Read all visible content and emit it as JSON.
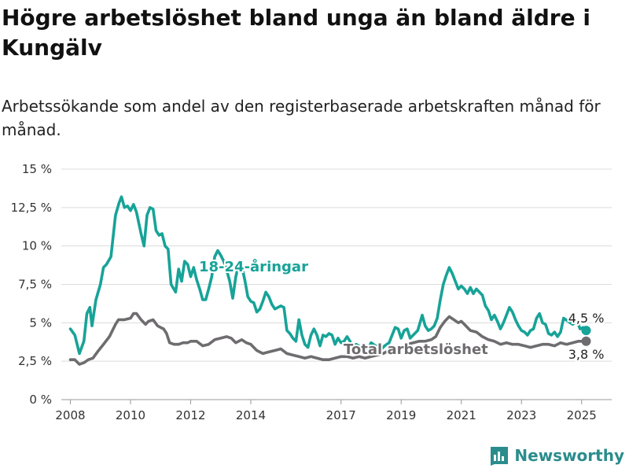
{
  "header": {
    "title": "Högre arbetslöshet bland unga än bland äldre i Kungälv",
    "subtitle": "Arbetssökande som andel av den registerbaserade arbetskraften månad för månad."
  },
  "brand": {
    "name": "Newsworthy",
    "icon": "bar-chart-icon",
    "color": "#2b8c8c"
  },
  "chart_data": {
    "type": "line",
    "title": "Högre arbetslöshet bland unga än bland äldre i Kungälv",
    "subtitle": "Arbetssökande som andel av den registerbaserade arbetskraften månad för månad.",
    "xlabel": "",
    "ylabel": "",
    "xlim": [
      2007.7,
      2026.0
    ],
    "ylim": [
      0,
      15
    ],
    "xticks": [
      2008,
      2010,
      2012,
      2014,
      2017,
      2019,
      2021,
      2023,
      2025
    ],
    "xtick_labels": [
      "2008",
      "2010",
      "2012",
      "2014",
      "2017",
      "2019",
      "2021",
      "2023",
      "2025"
    ],
    "yticks": [
      0,
      2.5,
      5,
      7.5,
      10,
      12.5,
      15
    ],
    "ytick_labels": [
      "0 %",
      "2,5 %",
      "5 %",
      "7,5 %",
      "10 %",
      "12,5 %",
      "15 %"
    ],
    "grid": "horizontal",
    "series": [
      {
        "name": "18-24-åringar",
        "color": "#17a398",
        "end_label": "4,5 %",
        "points": [
          [
            2008.0,
            4.6
          ],
          [
            2008.15,
            4.2
          ],
          [
            2008.3,
            3.0
          ],
          [
            2008.45,
            3.8
          ],
          [
            2008.55,
            5.6
          ],
          [
            2008.65,
            6.0
          ],
          [
            2008.72,
            4.8
          ],
          [
            2008.85,
            6.5
          ],
          [
            2009.0,
            7.5
          ],
          [
            2009.1,
            8.6
          ],
          [
            2009.2,
            8.8
          ],
          [
            2009.35,
            9.3
          ],
          [
            2009.5,
            12.0
          ],
          [
            2009.62,
            12.8
          ],
          [
            2009.7,
            13.2
          ],
          [
            2009.8,
            12.5
          ],
          [
            2009.9,
            12.6
          ],
          [
            2010.0,
            12.3
          ],
          [
            2010.1,
            12.7
          ],
          [
            2010.2,
            12.2
          ],
          [
            2010.35,
            10.8
          ],
          [
            2010.45,
            10.0
          ],
          [
            2010.55,
            12.0
          ],
          [
            2010.65,
            12.5
          ],
          [
            2010.75,
            12.4
          ],
          [
            2010.85,
            11.0
          ],
          [
            2010.95,
            10.7
          ],
          [
            2011.05,
            10.8
          ],
          [
            2011.15,
            10.0
          ],
          [
            2011.25,
            9.8
          ],
          [
            2011.35,
            7.5
          ],
          [
            2011.5,
            7.0
          ],
          [
            2011.6,
            8.5
          ],
          [
            2011.7,
            7.7
          ],
          [
            2011.8,
            9.0
          ],
          [
            2011.9,
            8.8
          ],
          [
            2012.0,
            8.0
          ],
          [
            2012.1,
            8.6
          ],
          [
            2012.2,
            7.8
          ],
          [
            2012.3,
            7.2
          ],
          [
            2012.4,
            6.5
          ],
          [
            2012.5,
            6.5
          ],
          [
            2012.6,
            7.2
          ],
          [
            2012.7,
            8.0
          ],
          [
            2012.8,
            9.3
          ],
          [
            2012.9,
            9.7
          ],
          [
            2013.0,
            9.4
          ],
          [
            2013.1,
            9.0
          ],
          [
            2013.2,
            8.4
          ],
          [
            2013.3,
            7.7
          ],
          [
            2013.4,
            6.6
          ],
          [
            2013.5,
            8.0
          ],
          [
            2013.6,
            8.8
          ],
          [
            2013.7,
            8.7
          ],
          [
            2013.8,
            7.8
          ],
          [
            2013.9,
            6.7
          ],
          [
            2014.0,
            6.4
          ],
          [
            2014.1,
            6.3
          ],
          [
            2014.2,
            5.7
          ],
          [
            2014.3,
            5.9
          ],
          [
            2014.4,
            6.4
          ],
          [
            2014.5,
            7.0
          ],
          [
            2014.6,
            6.7
          ],
          [
            2014.7,
            6.2
          ],
          [
            2014.8,
            5.9
          ],
          [
            2014.9,
            6.0
          ],
          [
            2015.0,
            6.1
          ],
          [
            2015.1,
            6.0
          ],
          [
            2015.2,
            4.5
          ],
          [
            2015.3,
            4.3
          ],
          [
            2015.4,
            4.0
          ],
          [
            2015.5,
            3.8
          ],
          [
            2015.6,
            5.2
          ],
          [
            2015.7,
            4.2
          ],
          [
            2015.8,
            3.6
          ],
          [
            2015.9,
            3.4
          ],
          [
            2016.0,
            4.2
          ],
          [
            2016.1,
            4.6
          ],
          [
            2016.2,
            4.2
          ],
          [
            2016.3,
            3.5
          ],
          [
            2016.4,
            4.2
          ],
          [
            2016.5,
            4.1
          ],
          [
            2016.6,
            4.3
          ],
          [
            2016.7,
            4.2
          ],
          [
            2016.8,
            3.6
          ],
          [
            2016.9,
            4.0
          ],
          [
            2017.0,
            3.7
          ],
          [
            2017.1,
            3.8
          ],
          [
            2017.2,
            4.1
          ],
          [
            2017.3,
            3.8
          ],
          [
            2017.4,
            3.2
          ],
          [
            2017.5,
            3.6
          ],
          [
            2017.6,
            3.5
          ],
          [
            2017.7,
            3.4
          ],
          [
            2017.8,
            3.4
          ],
          [
            2017.9,
            3.3
          ],
          [
            2018.0,
            3.7
          ],
          [
            2018.15,
            3.5
          ],
          [
            2018.3,
            3.2
          ],
          [
            2018.45,
            3.5
          ],
          [
            2018.6,
            3.7
          ],
          [
            2018.8,
            4.7
          ],
          [
            2018.9,
            4.6
          ],
          [
            2019.0,
            4.0
          ],
          [
            2019.1,
            4.5
          ],
          [
            2019.2,
            4.6
          ],
          [
            2019.3,
            4.0
          ],
          [
            2019.4,
            4.2
          ],
          [
            2019.55,
            4.5
          ],
          [
            2019.7,
            5.5
          ],
          [
            2019.8,
            4.8
          ],
          [
            2019.9,
            4.5
          ],
          [
            2020.0,
            4.6
          ],
          [
            2020.1,
            4.8
          ],
          [
            2020.2,
            5.3
          ],
          [
            2020.3,
            6.5
          ],
          [
            2020.4,
            7.5
          ],
          [
            2020.5,
            8.1
          ],
          [
            2020.6,
            8.6
          ],
          [
            2020.7,
            8.2
          ],
          [
            2020.8,
            7.7
          ],
          [
            2020.9,
            7.2
          ],
          [
            2021.0,
            7.4
          ],
          [
            2021.1,
            7.2
          ],
          [
            2021.2,
            6.9
          ],
          [
            2021.3,
            7.3
          ],
          [
            2021.4,
            6.9
          ],
          [
            2021.5,
            7.2
          ],
          [
            2021.6,
            7.0
          ],
          [
            2021.7,
            6.8
          ],
          [
            2021.8,
            6.1
          ],
          [
            2021.9,
            5.8
          ],
          [
            2022.0,
            5.2
          ],
          [
            2022.1,
            5.5
          ],
          [
            2022.2,
            5.1
          ],
          [
            2022.3,
            4.6
          ],
          [
            2022.4,
            5.0
          ],
          [
            2022.5,
            5.5
          ],
          [
            2022.6,
            6.0
          ],
          [
            2022.7,
            5.7
          ],
          [
            2022.8,
            5.2
          ],
          [
            2022.9,
            4.8
          ],
          [
            2023.0,
            4.5
          ],
          [
            2023.1,
            4.4
          ],
          [
            2023.2,
            4.2
          ],
          [
            2023.3,
            4.5
          ],
          [
            2023.4,
            4.6
          ],
          [
            2023.5,
            5.3
          ],
          [
            2023.6,
            5.6
          ],
          [
            2023.7,
            5.0
          ],
          [
            2023.8,
            4.9
          ],
          [
            2023.9,
            4.3
          ],
          [
            2024.0,
            4.2
          ],
          [
            2024.1,
            4.4
          ],
          [
            2024.2,
            4.1
          ],
          [
            2024.3,
            4.4
          ],
          [
            2024.4,
            5.3
          ],
          [
            2024.55,
            5.1
          ],
          [
            2024.7,
            4.9
          ],
          [
            2024.85,
            5.1
          ],
          [
            2024.95,
            4.6
          ],
          [
            2025.05,
            4.7
          ],
          [
            2025.15,
            4.5
          ]
        ]
      },
      {
        "name": "Total arbetslöshet",
        "color": "#6e6c6f",
        "end_label": "3,8 %",
        "points": [
          [
            2008.0,
            2.6
          ],
          [
            2008.15,
            2.6
          ],
          [
            2008.3,
            2.3
          ],
          [
            2008.45,
            2.4
          ],
          [
            2008.6,
            2.6
          ],
          [
            2008.75,
            2.7
          ],
          [
            2008.9,
            3.1
          ],
          [
            2009.1,
            3.6
          ],
          [
            2009.3,
            4.1
          ],
          [
            2009.5,
            4.9
          ],
          [
            2009.6,
            5.2
          ],
          [
            2009.8,
            5.2
          ],
          [
            2010.0,
            5.3
          ],
          [
            2010.1,
            5.6
          ],
          [
            2010.2,
            5.6
          ],
          [
            2010.35,
            5.2
          ],
          [
            2010.5,
            4.9
          ],
          [
            2010.6,
            5.1
          ],
          [
            2010.75,
            5.2
          ],
          [
            2010.9,
            4.8
          ],
          [
            2011.0,
            4.7
          ],
          [
            2011.1,
            4.6
          ],
          [
            2011.2,
            4.3
          ],
          [
            2011.3,
            3.7
          ],
          [
            2011.45,
            3.6
          ],
          [
            2011.6,
            3.6
          ],
          [
            2011.75,
            3.7
          ],
          [
            2011.9,
            3.7
          ],
          [
            2012.0,
            3.8
          ],
          [
            2012.2,
            3.8
          ],
          [
            2012.4,
            3.5
          ],
          [
            2012.6,
            3.6
          ],
          [
            2012.8,
            3.9
          ],
          [
            2013.0,
            4.0
          ],
          [
            2013.2,
            4.1
          ],
          [
            2013.35,
            4.0
          ],
          [
            2013.5,
            3.7
          ],
          [
            2013.7,
            3.9
          ],
          [
            2013.85,
            3.7
          ],
          [
            2014.0,
            3.6
          ],
          [
            2014.2,
            3.2
          ],
          [
            2014.4,
            3.0
          ],
          [
            2014.6,
            3.1
          ],
          [
            2014.8,
            3.2
          ],
          [
            2015.0,
            3.3
          ],
          [
            2015.2,
            3.0
          ],
          [
            2015.4,
            2.9
          ],
          [
            2015.6,
            2.8
          ],
          [
            2015.8,
            2.7
          ],
          [
            2016.0,
            2.8
          ],
          [
            2016.2,
            2.7
          ],
          [
            2016.4,
            2.6
          ],
          [
            2016.6,
            2.6
          ],
          [
            2016.8,
            2.7
          ],
          [
            2017.0,
            2.8
          ],
          [
            2017.2,
            2.8
          ],
          [
            2017.4,
            2.7
          ],
          [
            2017.6,
            2.8
          ],
          [
            2017.8,
            2.7
          ],
          [
            2018.0,
            2.8
          ],
          [
            2018.2,
            2.9
          ],
          [
            2018.4,
            3.0
          ],
          [
            2018.6,
            3.2
          ],
          [
            2018.8,
            3.3
          ],
          [
            2019.0,
            3.4
          ],
          [
            2019.2,
            3.6
          ],
          [
            2019.4,
            3.7
          ],
          [
            2019.6,
            3.8
          ],
          [
            2019.8,
            3.8
          ],
          [
            2020.0,
            3.9
          ],
          [
            2020.15,
            4.1
          ],
          [
            2020.3,
            4.7
          ],
          [
            2020.45,
            5.1
          ],
          [
            2020.6,
            5.4
          ],
          [
            2020.75,
            5.2
          ],
          [
            2020.9,
            5.0
          ],
          [
            2021.0,
            5.1
          ],
          [
            2021.15,
            4.8
          ],
          [
            2021.3,
            4.5
          ],
          [
            2021.5,
            4.4
          ],
          [
            2021.7,
            4.1
          ],
          [
            2021.9,
            3.9
          ],
          [
            2022.1,
            3.8
          ],
          [
            2022.3,
            3.6
          ],
          [
            2022.5,
            3.7
          ],
          [
            2022.7,
            3.6
          ],
          [
            2022.9,
            3.6
          ],
          [
            2023.1,
            3.5
          ],
          [
            2023.3,
            3.4
          ],
          [
            2023.5,
            3.5
          ],
          [
            2023.7,
            3.6
          ],
          [
            2023.9,
            3.6
          ],
          [
            2024.1,
            3.5
          ],
          [
            2024.3,
            3.7
          ],
          [
            2024.5,
            3.6
          ],
          [
            2024.7,
            3.7
          ],
          [
            2024.9,
            3.8
          ],
          [
            2025.05,
            3.8
          ],
          [
            2025.15,
            3.8
          ]
        ]
      }
    ]
  }
}
